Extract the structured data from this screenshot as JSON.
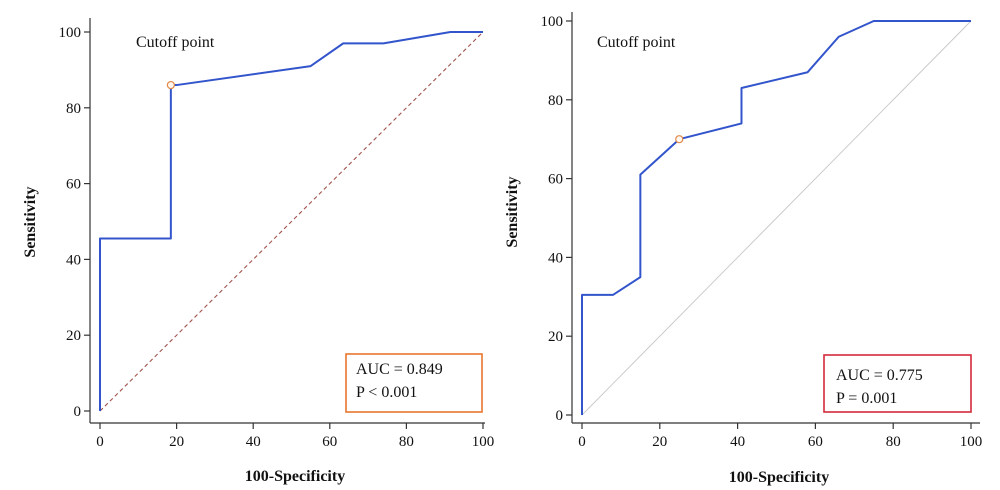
{
  "chart_data": [
    {
      "type": "line",
      "xlabel": "100-Specificity",
      "ylabel": "Sensitivity",
      "xlim": [
        0,
        100
      ],
      "ylim": [
        0,
        100
      ],
      "xticks": [
        "0",
        "20",
        "40",
        "60",
        "80",
        "100"
      ],
      "yticks": [
        "0",
        "20",
        "40",
        "60",
        "80",
        "100"
      ],
      "annotation": "Cutoff point",
      "stats": [
        "AUC = 0.849",
        "P < 0.001"
      ],
      "stats_border_color": "#e8772e",
      "curve_color": "#3355cc",
      "reference_line": "dashed",
      "reference_color": "#a0524a",
      "cutoff": {
        "x": 18.5,
        "y": 86
      },
      "roc_points": [
        [
          0,
          0
        ],
        [
          0,
          45.5
        ],
        [
          18.5,
          45.5
        ],
        [
          18.5,
          86
        ],
        [
          20,
          86
        ],
        [
          55,
          91
        ],
        [
          63.5,
          97
        ],
        [
          74,
          97
        ],
        [
          91.5,
          100
        ],
        [
          100,
          100
        ]
      ]
    },
    {
      "type": "line",
      "xlabel": "100-Specificity",
      "ylabel": "Sensitivity",
      "xlim": [
        0,
        100
      ],
      "ylim": [
        0,
        100
      ],
      "xticks": [
        "0",
        "20",
        "40",
        "60",
        "80",
        "100"
      ],
      "yticks": [
        "0",
        "20",
        "40",
        "60",
        "80",
        "100"
      ],
      "annotation": "Cutoff point",
      "stats": [
        "AUC = 0.775",
        "P = 0.001"
      ],
      "stats_border_color": "#d42a3a",
      "curve_color": "#3355cc",
      "reference_line": "solid",
      "reference_color": "#c8c8c8",
      "cutoff": {
        "x": 25,
        "y": 70
      },
      "roc_points": [
        [
          0,
          0
        ],
        [
          0,
          30.5
        ],
        [
          8,
          30.5
        ],
        [
          15,
          35
        ],
        [
          15,
          61
        ],
        [
          25,
          70
        ],
        [
          41,
          74
        ],
        [
          41,
          83
        ],
        [
          58,
          87
        ],
        [
          66,
          96
        ],
        [
          75,
          100
        ],
        [
          100,
          100
        ]
      ]
    }
  ]
}
